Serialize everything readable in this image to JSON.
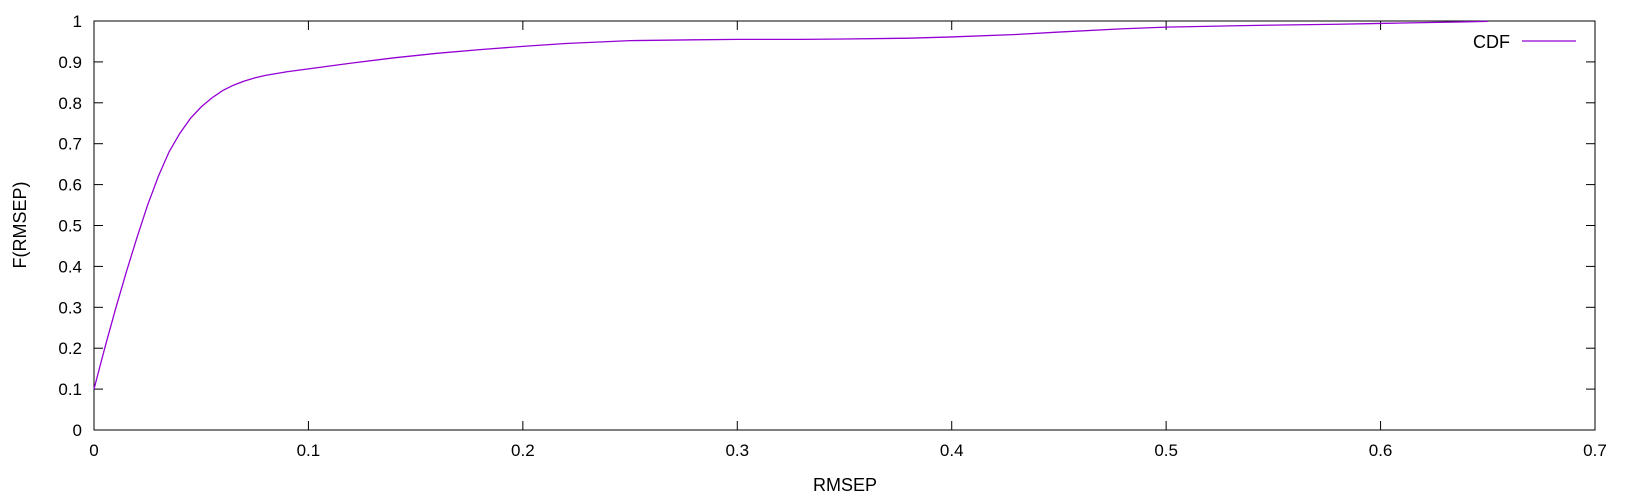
{
  "chart_data": {
    "type": "line",
    "xlabel": "RMSEP",
    "ylabel": "F(RMSEP)",
    "xlim": [
      0,
      0.7
    ],
    "ylim": [
      0,
      1
    ],
    "xticks": [
      "0",
      "0.1",
      "0.2",
      "0.3",
      "0.4",
      "0.5",
      "0.6",
      "0.7"
    ],
    "yticks": [
      "0",
      "0.1",
      "0.2",
      "0.3",
      "0.4",
      "0.5",
      "0.6",
      "0.7",
      "0.8",
      "0.9",
      "1"
    ],
    "grid": false,
    "legend_position": "top-right",
    "series": [
      {
        "name": "CDF",
        "color": "#9400d3",
        "x": [
          0,
          0.005,
          0.01,
          0.015,
          0.02,
          0.025,
          0.03,
          0.035,
          0.04,
          0.045,
          0.05,
          0.055,
          0.06,
          0.065,
          0.07,
          0.075,
          0.08,
          0.09,
          0.1,
          0.11,
          0.12,
          0.14,
          0.16,
          0.18,
          0.2,
          0.22,
          0.25,
          0.28,
          0.3,
          0.33,
          0.35,
          0.38,
          0.4,
          0.43,
          0.45,
          0.48,
          0.5,
          0.53,
          0.55,
          0.58,
          0.6,
          0.62,
          0.64,
          0.65
        ],
        "y": [
          0.1,
          0.2,
          0.295,
          0.385,
          0.47,
          0.55,
          0.62,
          0.68,
          0.725,
          0.762,
          0.79,
          0.812,
          0.83,
          0.843,
          0.853,
          0.861,
          0.867,
          0.876,
          0.883,
          0.89,
          0.897,
          0.91,
          0.921,
          0.93,
          0.938,
          0.945,
          0.952,
          0.954,
          0.955,
          0.955,
          0.956,
          0.958,
          0.961,
          0.967,
          0.973,
          0.981,
          0.985,
          0.988,
          0.99,
          0.992,
          0.994,
          0.996,
          0.998,
          0.999
        ]
      }
    ]
  }
}
